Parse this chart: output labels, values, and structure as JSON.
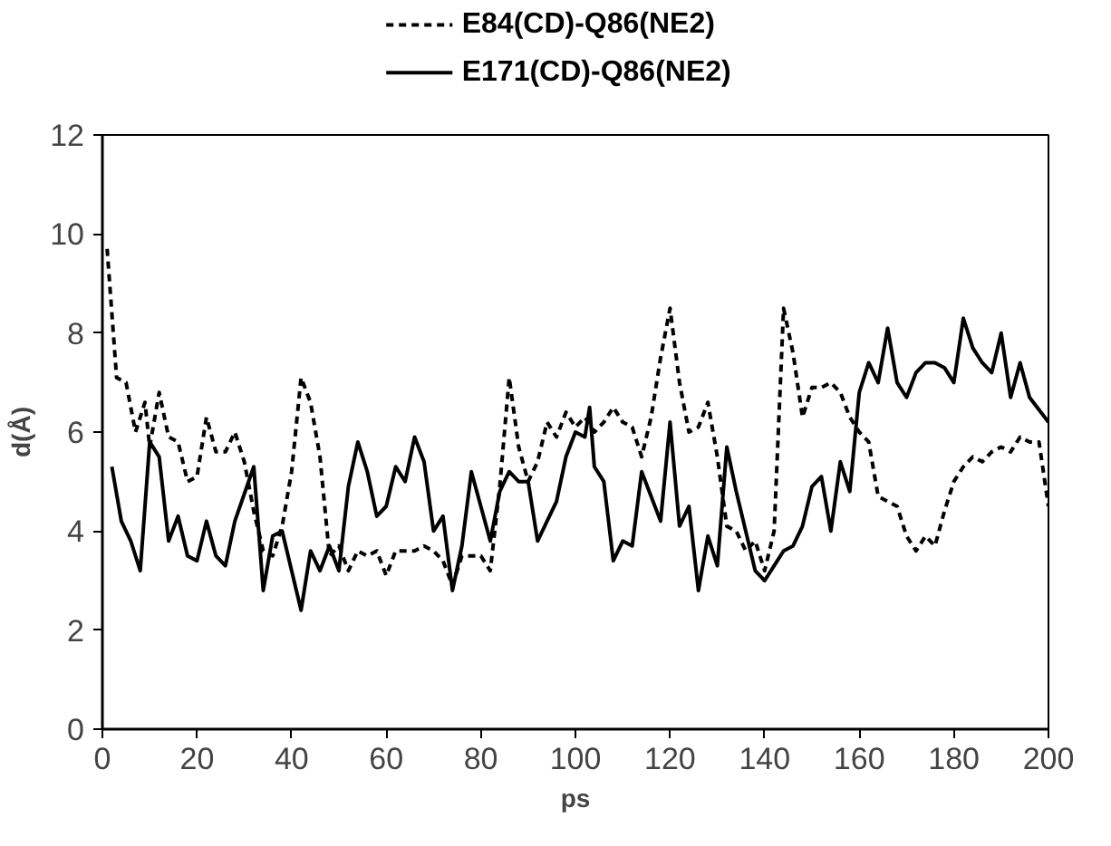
{
  "chart_data": {
    "type": "line",
    "xlabel": "ps",
    "ylabel": "d(Å)",
    "xlim": [
      0,
      200
    ],
    "ylim": [
      0,
      12
    ],
    "xticks": [
      0,
      20,
      40,
      60,
      80,
      100,
      120,
      140,
      160,
      180,
      200
    ],
    "yticks": [
      0,
      2,
      4,
      6,
      8,
      10,
      12
    ],
    "grid": false,
    "legend": "top",
    "marker": "none",
    "series": [
      {
        "name": "E84(CD)-Q86(NE2)",
        "color": "#000000",
        "line_style": "dashed",
        "x": [
          1,
          3,
          5,
          7,
          9,
          10,
          12,
          14,
          16,
          18,
          20,
          22,
          24,
          26,
          28,
          30,
          32,
          34,
          36,
          38,
          40,
          42,
          44,
          46,
          48,
          50,
          52,
          54,
          56,
          58,
          60,
          62,
          64,
          66,
          68,
          70,
          72,
          74,
          76,
          78,
          80,
          82,
          84,
          86,
          88,
          90,
          92,
          94,
          96,
          98,
          100,
          102,
          104,
          106,
          108,
          110,
          112,
          114,
          116,
          118,
          120,
          122,
          124,
          126,
          128,
          130,
          132,
          134,
          136,
          138,
          140,
          142,
          144,
          146,
          148,
          150,
          152,
          154,
          156,
          158,
          160,
          162,
          164,
          166,
          168,
          170,
          172,
          174,
          176,
          178,
          180,
          182,
          184,
          186,
          188,
          190,
          192,
          194,
          196,
          198,
          200
        ],
        "values": [
          9.7,
          7.1,
          7.0,
          6.0,
          6.6,
          5.7,
          6.8,
          5.9,
          5.8,
          5.0,
          5.1,
          6.3,
          5.6,
          5.6,
          6.0,
          5.4,
          4.4,
          3.6,
          3.5,
          4.1,
          5.2,
          7.1,
          6.6,
          5.5,
          3.5,
          3.7,
          3.2,
          3.6,
          3.5,
          3.6,
          3.1,
          3.6,
          3.6,
          3.6,
          3.7,
          3.6,
          3.4,
          2.9,
          3.5,
          3.5,
          3.5,
          3.2,
          4.9,
          7.1,
          5.7,
          5.0,
          5.4,
          6.2,
          5.9,
          6.4,
          6.1,
          6.3,
          6.0,
          6.2,
          6.5,
          6.2,
          6.1,
          5.5,
          6.3,
          7.5,
          8.5,
          7.0,
          6.0,
          6.1,
          6.6,
          5.5,
          4.1,
          4.0,
          3.6,
          3.8,
          3.2,
          4.0,
          8.5,
          7.6,
          6.3,
          6.9,
          6.9,
          7.0,
          6.8,
          6.3,
          6.0,
          5.8,
          4.7,
          4.6,
          4.5,
          3.9,
          3.6,
          3.9,
          3.7,
          4.4,
          5.0,
          5.3,
          5.5,
          5.4,
          5.6,
          5.7,
          5.6,
          5.9,
          5.8,
          5.8,
          4.5
        ]
      },
      {
        "name": "E171(CD)-Q86(NE2)",
        "color": "#000000",
        "line_style": "solid",
        "x": [
          2,
          4,
          6,
          8,
          10,
          12,
          14,
          16,
          18,
          20,
          22,
          24,
          26,
          28,
          32,
          34,
          36,
          38,
          40,
          42,
          44,
          46,
          48,
          50,
          52,
          54,
          56,
          58,
          60,
          62,
          64,
          66,
          68,
          70,
          72,
          74,
          76,
          78,
          80,
          82,
          84,
          86,
          88,
          90,
          92,
          94,
          96,
          98,
          100,
          102,
          103,
          104,
          106,
          108,
          110,
          112,
          114,
          116,
          118,
          120,
          122,
          124,
          126,
          128,
          130,
          132,
          134,
          138,
          140,
          142,
          144,
          146,
          148,
          150,
          152,
          154,
          156,
          158,
          160,
          162,
          164,
          166,
          168,
          170,
          172,
          174,
          176,
          178,
          180,
          182,
          184,
          186,
          188,
          190,
          192,
          194,
          196,
          200
        ],
        "values": [
          5.3,
          4.2,
          3.8,
          3.2,
          5.8,
          5.5,
          3.8,
          4.3,
          3.5,
          3.4,
          4.2,
          3.5,
          3.3,
          4.2,
          5.3,
          2.8,
          3.9,
          4.0,
          3.2,
          2.4,
          3.6,
          3.2,
          3.7,
          3.2,
          4.9,
          5.8,
          5.2,
          4.3,
          4.5,
          5.3,
          5.0,
          5.9,
          5.4,
          4.0,
          4.3,
          2.8,
          3.7,
          5.2,
          4.5,
          3.8,
          4.8,
          5.2,
          5.0,
          5.0,
          3.8,
          4.2,
          4.6,
          5.5,
          6.0,
          5.9,
          6.5,
          5.3,
          5.0,
          3.4,
          3.8,
          3.7,
          5.2,
          4.7,
          4.2,
          6.2,
          4.1,
          4.5,
          2.8,
          3.9,
          3.3,
          5.7,
          4.8,
          3.2,
          3.0,
          3.3,
          3.6,
          3.7,
          4.1,
          4.9,
          5.1,
          4.0,
          5.4,
          4.8,
          6.8,
          7.4,
          7.0,
          8.1,
          7.0,
          6.7,
          7.2,
          7.4,
          7.4,
          7.3,
          7.0,
          8.3,
          7.7,
          7.4,
          7.2,
          8.0,
          6.7,
          7.4,
          6.7,
          6.2
        ]
      }
    ]
  }
}
